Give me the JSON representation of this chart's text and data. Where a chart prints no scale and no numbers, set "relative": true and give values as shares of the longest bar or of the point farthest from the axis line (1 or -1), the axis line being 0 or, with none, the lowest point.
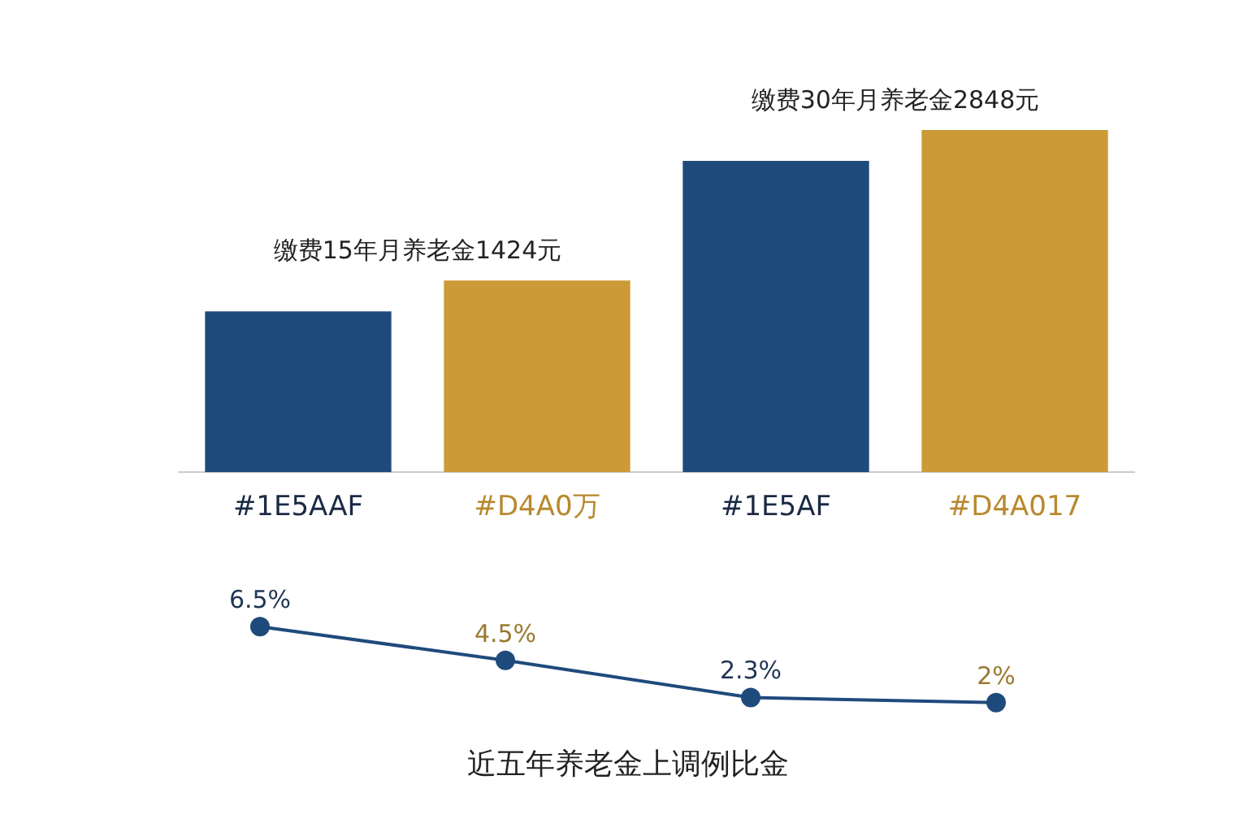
{
  "chart_data": [
    {
      "type": "bar",
      "relative": true,
      "categories": [
        "#1E5AAF",
        "#D4A0万",
        "#1E5AF",
        "#D4A017"
      ],
      "values": [
        0.47,
        0.56,
        0.91,
        1
      ],
      "colors": [
        "#1f4a7c",
        "#cc9a36",
        "#1f4a7c",
        "#cc9a36"
      ],
      "annotations": [
        "缴费15年月养老金1424元",
        "缴费30年月养老金2848元"
      ],
      "legend": false,
      "grid": false
    },
    {
      "type": "line",
      "title": "近五年养老金上调例比金",
      "categories": [
        null,
        null,
        null,
        null
      ],
      "values": [
        6.5,
        4.5,
        2.3,
        2
      ],
      "color": "#1f4a7c",
      "marker": "circle",
      "data_labels": true,
      "value_labels": [
        "6.5%",
        "4.5%",
        "2.3%",
        "2%"
      ],
      "legend": false,
      "grid": false,
      "tick_labels": false
    }
  ]
}
